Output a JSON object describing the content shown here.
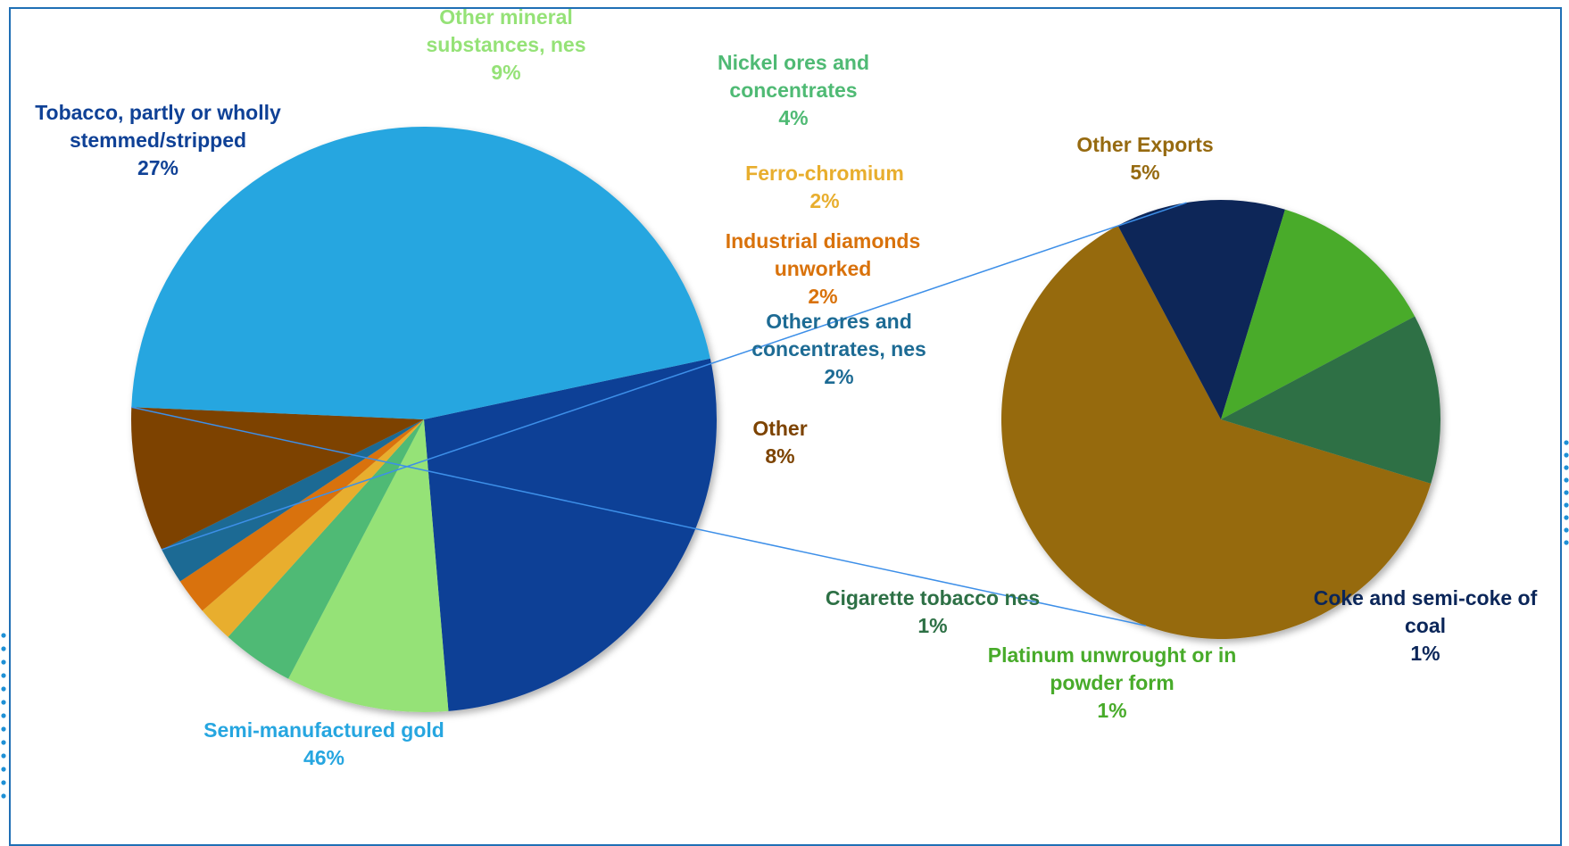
{
  "chart_data": [
    {
      "type": "pie",
      "title": "",
      "slices": [
        {
          "label": "Tobacco, partly or wholly stemmed/stripped",
          "label_lines": [
            "Tobacco, partly or wholly",
            "stemmed/stripped"
          ],
          "value": 27,
          "value_label": "27%",
          "color": "#0f4196"
        },
        {
          "label": "Other mineral substances, nes",
          "label_lines": [
            "Other mineral",
            "substances, nes"
          ],
          "value": 9,
          "value_label": "9%",
          "color": "#95e277"
        },
        {
          "label": "Nickel ores and concentrates",
          "label_lines": [
            "Nickel ores and",
            "concentrates"
          ],
          "value": 4,
          "value_label": "4%",
          "color": "#4fba74"
        },
        {
          "label": "Ferro-chromium",
          "label_lines": [
            "Ferro-chromium"
          ],
          "value": 2,
          "value_label": "2%",
          "color": "#e8ae2e"
        },
        {
          "label": "Industrial diamonds unworked",
          "label_lines": [
            "Industrial diamonds",
            "unworked"
          ],
          "value": 2,
          "value_label": "2%",
          "color": "#d9720b"
        },
        {
          "label": "Other ores and concentrates, nes",
          "label_lines": [
            "Other ores and",
            "concentrates, nes"
          ],
          "value": 2,
          "value_label": "2%",
          "color": "#1d6b94"
        },
        {
          "label": "Other",
          "label_lines": [
            "Other"
          ],
          "value": 8,
          "value_label": "8%",
          "color": "#7d4300"
        },
        {
          "label": "Semi-manufactured gold",
          "label_lines": [
            "Semi-manufactured gold"
          ],
          "value": 46,
          "value_label": "46%",
          "color": "#26a6e0"
        }
      ]
    },
    {
      "type": "pie",
      "title": "",
      "breakdown_of": "Other",
      "slices": [
        {
          "label": "Other Exports",
          "label_lines": [
            "Other Exports"
          ],
          "value": 5,
          "value_label": "5%",
          "color": "#966a10"
        },
        {
          "label": "Coke and semi-coke of coal",
          "label_lines": [
            "Coke and semi-coke of",
            "coal"
          ],
          "value": 1,
          "value_label": "1%",
          "color": "#0b2659"
        },
        {
          "label": "Platinum unwrought or in powder form",
          "label_lines": [
            "Platinum unwrought or in",
            "powder form"
          ],
          "value": 1,
          "value_label": "1%",
          "color": "#48ab2a"
        },
        {
          "label": "Cigarette tobacco nes",
          "label_lines": [
            "Cigarette tobacco nes"
          ],
          "value": 1,
          "value_label": "1%",
          "color": "#2d7045"
        }
      ]
    }
  ],
  "colors": {
    "frame_border": "#1f6fb5",
    "connector_line": "#3d8fe8",
    "decoration_dots": "#1e90d6"
  }
}
